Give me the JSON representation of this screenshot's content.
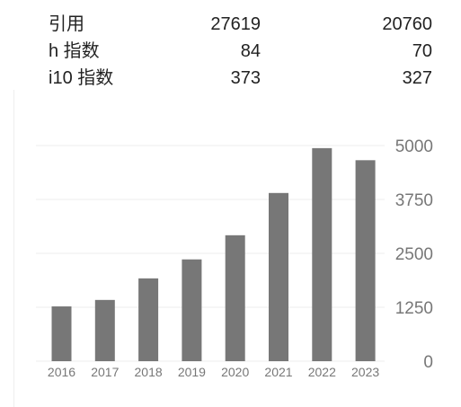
{
  "stats": {
    "rows": [
      {
        "label": "引用",
        "all": "27619",
        "since": "20760"
      },
      {
        "label": "h 指数",
        "all": "84",
        "since": "70"
      },
      {
        "label": "i10 指数",
        "all": "373",
        "since": "327"
      }
    ]
  },
  "colors": {
    "bar": "#777777",
    "grid": "#eeeeee",
    "axis_text": "#777777",
    "text": "#222222"
  },
  "chart_data": {
    "type": "bar",
    "categories": [
      "2016",
      "2017",
      "2018",
      "2019",
      "2020",
      "2021",
      "2022",
      "2023"
    ],
    "values": [
      1270,
      1420,
      1920,
      2360,
      2920,
      3900,
      4940,
      4660
    ],
    "yticks": [
      "0",
      "1250",
      "2500",
      "3750",
      "5000"
    ],
    "ylim": [
      0,
      5000
    ],
    "grid": true,
    "y_axis_position": "right"
  }
}
